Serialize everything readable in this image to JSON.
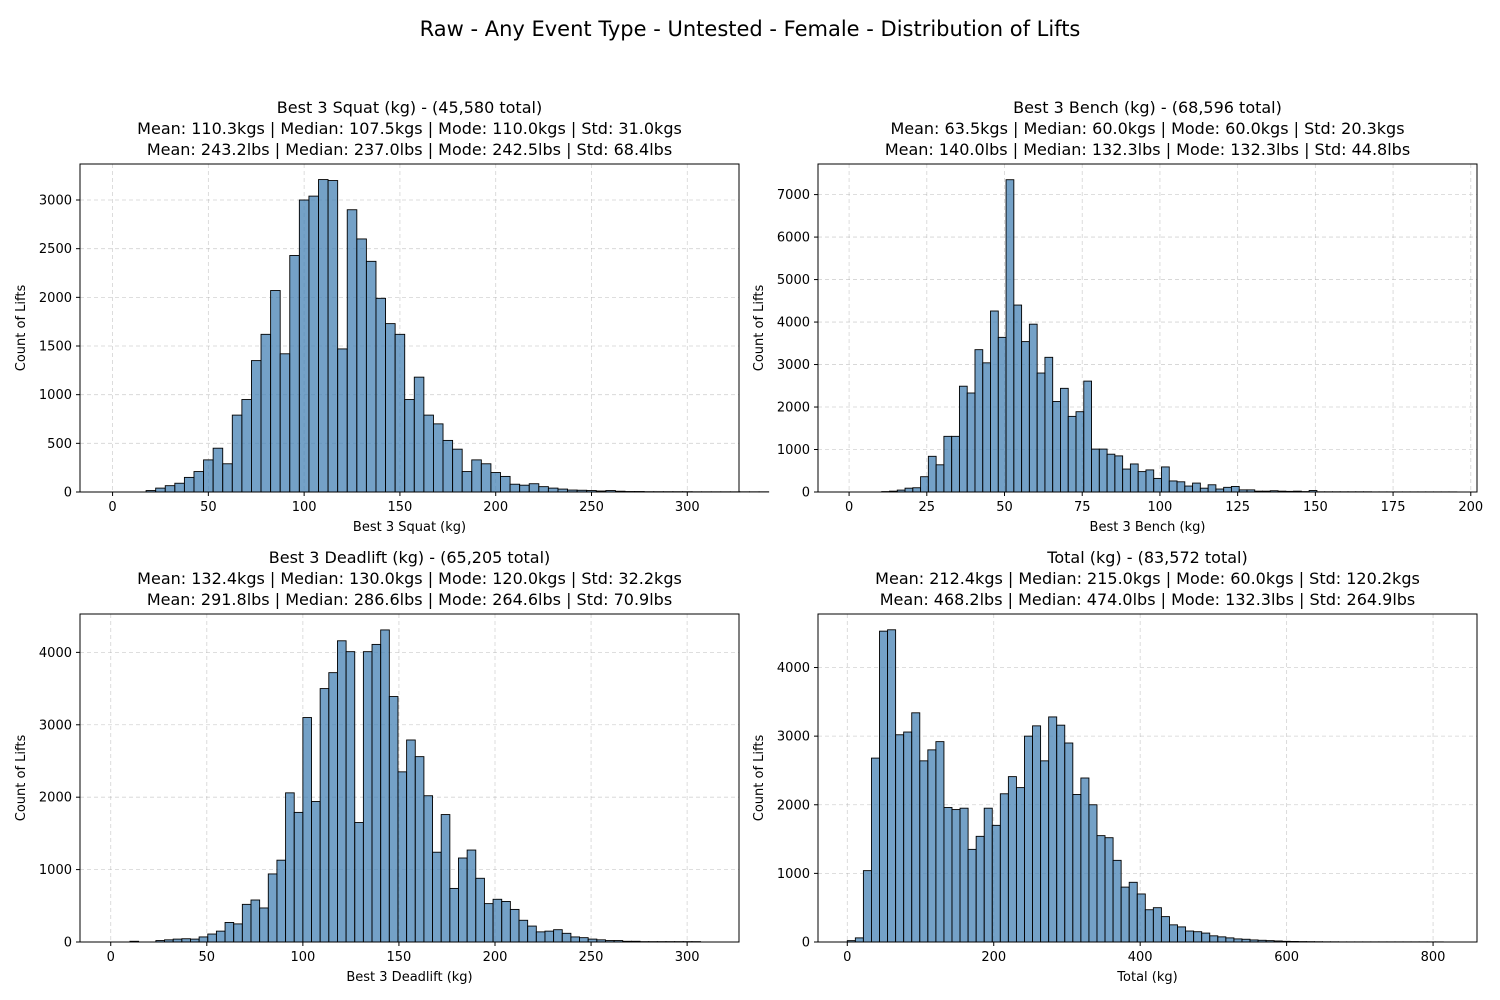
{
  "figure": {
    "title": "Raw - Any Event Type - Untested - Female - Distribution of Lifts"
  },
  "chart_data": [
    {
      "type": "bar",
      "title_lines": [
        "Best 3 Squat (kg) - (45,580 total)",
        "Mean: 110.3kgs | Median: 107.5kgs | Mode: 110.0kgs | Std: 31.0kgs",
        "Mean: 243.2lbs | Median: 237.0lbs | Mode: 242.5lbs | Std: 68.4lbs"
      ],
      "xlabel": "Best 3 Squat (kg)",
      "ylabel": "Count of Lifts",
      "xlim": [
        -17,
        327
      ],
      "ylim": [
        0,
        3370
      ],
      "xticks": [
        0,
        50,
        100,
        150,
        200,
        250,
        300
      ],
      "yticks": [
        0,
        500,
        1000,
        1500,
        2000,
        2500,
        3000
      ],
      "bin_start": 17.5,
      "bin_width": 5,
      "values": [
        15,
        40,
        65,
        90,
        150,
        210,
        330,
        450,
        290,
        790,
        950,
        1350,
        1620,
        2070,
        1420,
        2430,
        3000,
        3040,
        3210,
        3200,
        1470,
        2900,
        2600,
        2370,
        1990,
        1730,
        1620,
        950,
        1180,
        790,
        700,
        530,
        440,
        210,
        330,
        290,
        200,
        160,
        80,
        70,
        85,
        55,
        40,
        30,
        20,
        18,
        15,
        10,
        15,
        8,
        5,
        5,
        3,
        3,
        3,
        3,
        3,
        2,
        2,
        2,
        2,
        2,
        2,
        2,
        2
      ]
    },
    {
      "type": "bar",
      "title_lines": [
        "Best 3 Bench (kg) - (68,596 total)",
        "Mean: 63.5kgs | Median: 60.0kgs | Mode: 60.0kgs | Std: 20.3kgs",
        "Mean: 140.0lbs | Median: 132.3lbs | Mode: 132.3lbs | Std: 44.8lbs"
      ],
      "xlabel": "Best 3 Bench (kg)",
      "ylabel": "Count of Lifts",
      "xlim": [
        -10,
        202
      ],
      "ylim": [
        0,
        7720
      ],
      "xticks": [
        0,
        25,
        50,
        75,
        100,
        125,
        150,
        175,
        200
      ],
      "yticks": [
        0,
        1000,
        2000,
        3000,
        4000,
        5000,
        6000,
        7000
      ],
      "bin_start": 10.5,
      "bin_width": 2.5,
      "values": [
        10,
        20,
        45,
        90,
        100,
        360,
        840,
        640,
        1310,
        1310,
        2490,
        2330,
        3350,
        3040,
        4260,
        3640,
        7350,
        4400,
        3540,
        3950,
        2800,
        3170,
        2130,
        2440,
        1780,
        1890,
        2610,
        1010,
        1010,
        890,
        850,
        540,
        660,
        480,
        520,
        320,
        590,
        260,
        240,
        140,
        210,
        90,
        170,
        70,
        110,
        130,
        50,
        50,
        20,
        20,
        30,
        20,
        15,
        20,
        10,
        35,
        5,
        5,
        5,
        5,
        5,
        5,
        5,
        3,
        3,
        3,
        3,
        3,
        3,
        3,
        3,
        3,
        3,
        3
      ]
    },
    {
      "type": "bar",
      "title_lines": [
        "Best 3 Deadlift (kg) - (65,205 total)",
        "Mean: 132.4kgs | Median: 130.0kgs | Mode: 120.0kgs | Std: 32.2kgs",
        "Mean: 291.8lbs | Median: 286.6lbs | Mode: 264.6lbs | Std: 70.9lbs"
      ],
      "xlabel": "Best 3 Deadlift (kg)",
      "ylabel": "Count of Lifts",
      "xlim": [
        -16,
        327
      ],
      "ylim": [
        0,
        4530
      ],
      "xticks": [
        0,
        50,
        100,
        150,
        200,
        250,
        300
      ],
      "yticks": [
        0,
        1000,
        2000,
        3000,
        4000
      ],
      "bin_start": 10,
      "bin_width": 4.5,
      "values": [
        10,
        0,
        0,
        20,
        30,
        40,
        45,
        40,
        70,
        110,
        150,
        270,
        250,
        520,
        580,
        470,
        940,
        1130,
        2060,
        1790,
        3100,
        1940,
        3500,
        3720,
        4160,
        4010,
        1650,
        4010,
        4110,
        4310,
        3390,
        2350,
        2790,
        2560,
        2020,
        1240,
        1760,
        740,
        1160,
        1270,
        880,
        530,
        590,
        560,
        450,
        300,
        220,
        140,
        150,
        170,
        120,
        70,
        60,
        40,
        30,
        20,
        20,
        10,
        10,
        5,
        5,
        5,
        5,
        5,
        5,
        5
      ]
    },
    {
      "type": "bar",
      "title_lines": [
        "Total (kg) - (83,572 total)",
        "Mean: 212.4kgs | Median: 215.0kgs | Mode: 60.0kgs | Std: 120.2kgs",
        "Mean: 468.2lbs | Median: 474.0lbs | Mode: 132.3lbs | Std: 264.9lbs"
      ],
      "xlabel": "Total (kg)",
      "ylabel": "Count of Lifts",
      "xlim": [
        -40,
        860
      ],
      "ylim": [
        0,
        4780
      ],
      "xticks": [
        0,
        200,
        400,
        600,
        800
      ],
      "yticks": [
        0,
        1000,
        2000,
        3000,
        4000
      ],
      "bin_start": 0,
      "bin_width": 11,
      "values": [
        20,
        60,
        1040,
        2680,
        4530,
        4550,
        3020,
        3060,
        3340,
        2640,
        2800,
        2920,
        1960,
        1930,
        1950,
        1350,
        1540,
        1950,
        1700,
        2160,
        2410,
        2250,
        3000,
        3150,
        2640,
        3280,
        3160,
        2900,
        2150,
        2390,
        2000,
        1550,
        1520,
        1190,
        800,
        870,
        700,
        470,
        500,
        370,
        250,
        220,
        160,
        150,
        130,
        90,
        75,
        60,
        45,
        40,
        30,
        25,
        20,
        15,
        10,
        8,
        6,
        5,
        4,
        3,
        3,
        2,
        2,
        2,
        2,
        2,
        2,
        2,
        2,
        2,
        2,
        2,
        2,
        2
      ]
    }
  ]
}
